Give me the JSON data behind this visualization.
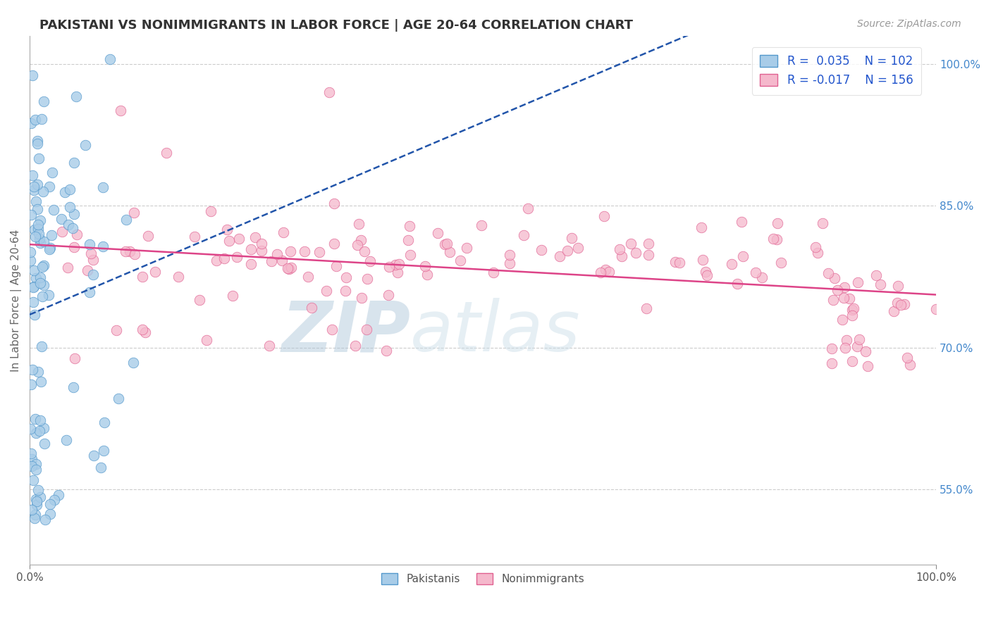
{
  "title": "PAKISTANI VS NONIMMIGRANTS IN LABOR FORCE | AGE 20-64 CORRELATION CHART",
  "source_text": "Source: ZipAtlas.com",
  "ylabel": "In Labor Force | Age 20-64",
  "xlim": [
    0.0,
    1.0
  ],
  "ylim": [
    0.47,
    1.03
  ],
  "y_tick_labels_right": [
    "100.0%",
    "85.0%",
    "70.0%",
    "55.0%"
  ],
  "y_tick_values_right": [
    1.0,
    0.85,
    0.7,
    0.55
  ],
  "pakistani_R": 0.035,
  "pakistani_N": 102,
  "nonimmigrant_R": -0.017,
  "nonimmigrant_N": 156,
  "pakistani_color": "#a8cce8",
  "pakistani_edge": "#5599cc",
  "nonimmigrant_color": "#f5b8cc",
  "nonimmigrant_edge": "#e06090",
  "trend_pakistani_color": "#2255aa",
  "trend_nonimmigrant_color": "#dd4488",
  "watermark_zip_color": "#b8cfe0",
  "watermark_atlas_color": "#c8d8e8",
  "grid_color": "#cccccc",
  "grid_style": "--",
  "background_color": "#ffffff",
  "legend_text_color": "#2255cc",
  "right_axis_color": "#4488cc"
}
